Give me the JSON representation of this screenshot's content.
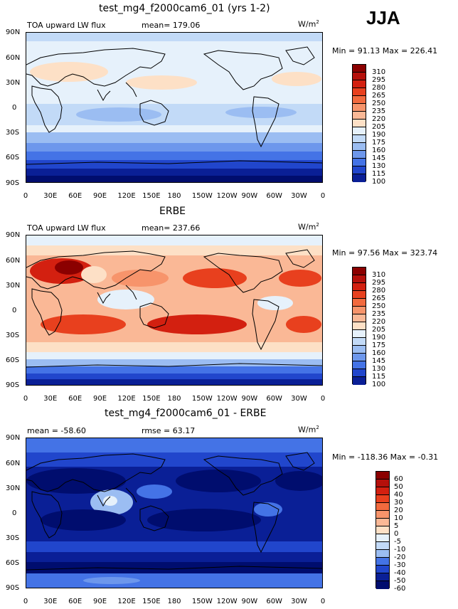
{
  "season": "JJA",
  "units": "W/m",
  "units_exp": "2",
  "panels": [
    {
      "title": "test_mg4_f2000cam6_01 (yrs 1-2)",
      "left_label": "TOA upward LW flux",
      "mean_label": "mean= 179.06",
      "minmax": "Min =  91.13 Max = 226.41",
      "levels": [
        "310",
        "295",
        "280",
        "265",
        "250",
        "235",
        "220",
        "205",
        "190",
        "175",
        "160",
        "145",
        "130",
        "115",
        "100"
      ]
    },
    {
      "title": "ERBE",
      "left_label": "TOA upward LW flux",
      "mean_label": "mean= 237.66",
      "minmax": "Min =  97.56 Max = 323.74",
      "levels": [
        "310",
        "295",
        "280",
        "265",
        "250",
        "235",
        "220",
        "205",
        "190",
        "175",
        "160",
        "145",
        "130",
        "115",
        "100"
      ]
    },
    {
      "title": "test_mg4_f2000cam6_01 - ERBE",
      "left_label": "mean = -58.60",
      "mean_label": "rmse =  63.17",
      "minmax": "Min = -118.36 Max =  -0.31",
      "levels": [
        "60",
        "50",
        "40",
        "30",
        "20",
        "10",
        "5",
        "0",
        "-5",
        "-10",
        "-20",
        "-30",
        "-40",
        "-50",
        "-60"
      ]
    }
  ],
  "lat_ticks": [
    "90N",
    "60N",
    "30N",
    "0",
    "30S",
    "60S",
    "90S"
  ],
  "lon_ticks": [
    "0",
    "30E",
    "60E",
    "90E",
    "120E",
    "150E",
    "180",
    "150W",
    "120W",
    "90W",
    "60W",
    "30W",
    "0"
  ],
  "palette_flux": [
    "#8b0000",
    "#b5100b",
    "#d32010",
    "#e8401e",
    "#f26a3e",
    "#f7946b",
    "#fab896",
    "#fde0c6",
    "#e6f1fb",
    "#c2daf7",
    "#9bbdf2",
    "#6d97ec",
    "#4473e6",
    "#2146cc",
    "#0a1f96",
    "#000d6e"
  ],
  "palette_diff": [
    "#8b0000",
    "#b5100b",
    "#d32010",
    "#e8401e",
    "#f26a3e",
    "#f7946b",
    "#fab896",
    "#fde0c6",
    "#e6f1fb",
    "#c2daf7",
    "#9bbdf2",
    "#6d97ec",
    "#4473e6",
    "#2146cc",
    "#0a1f96",
    "#000d6e"
  ]
}
